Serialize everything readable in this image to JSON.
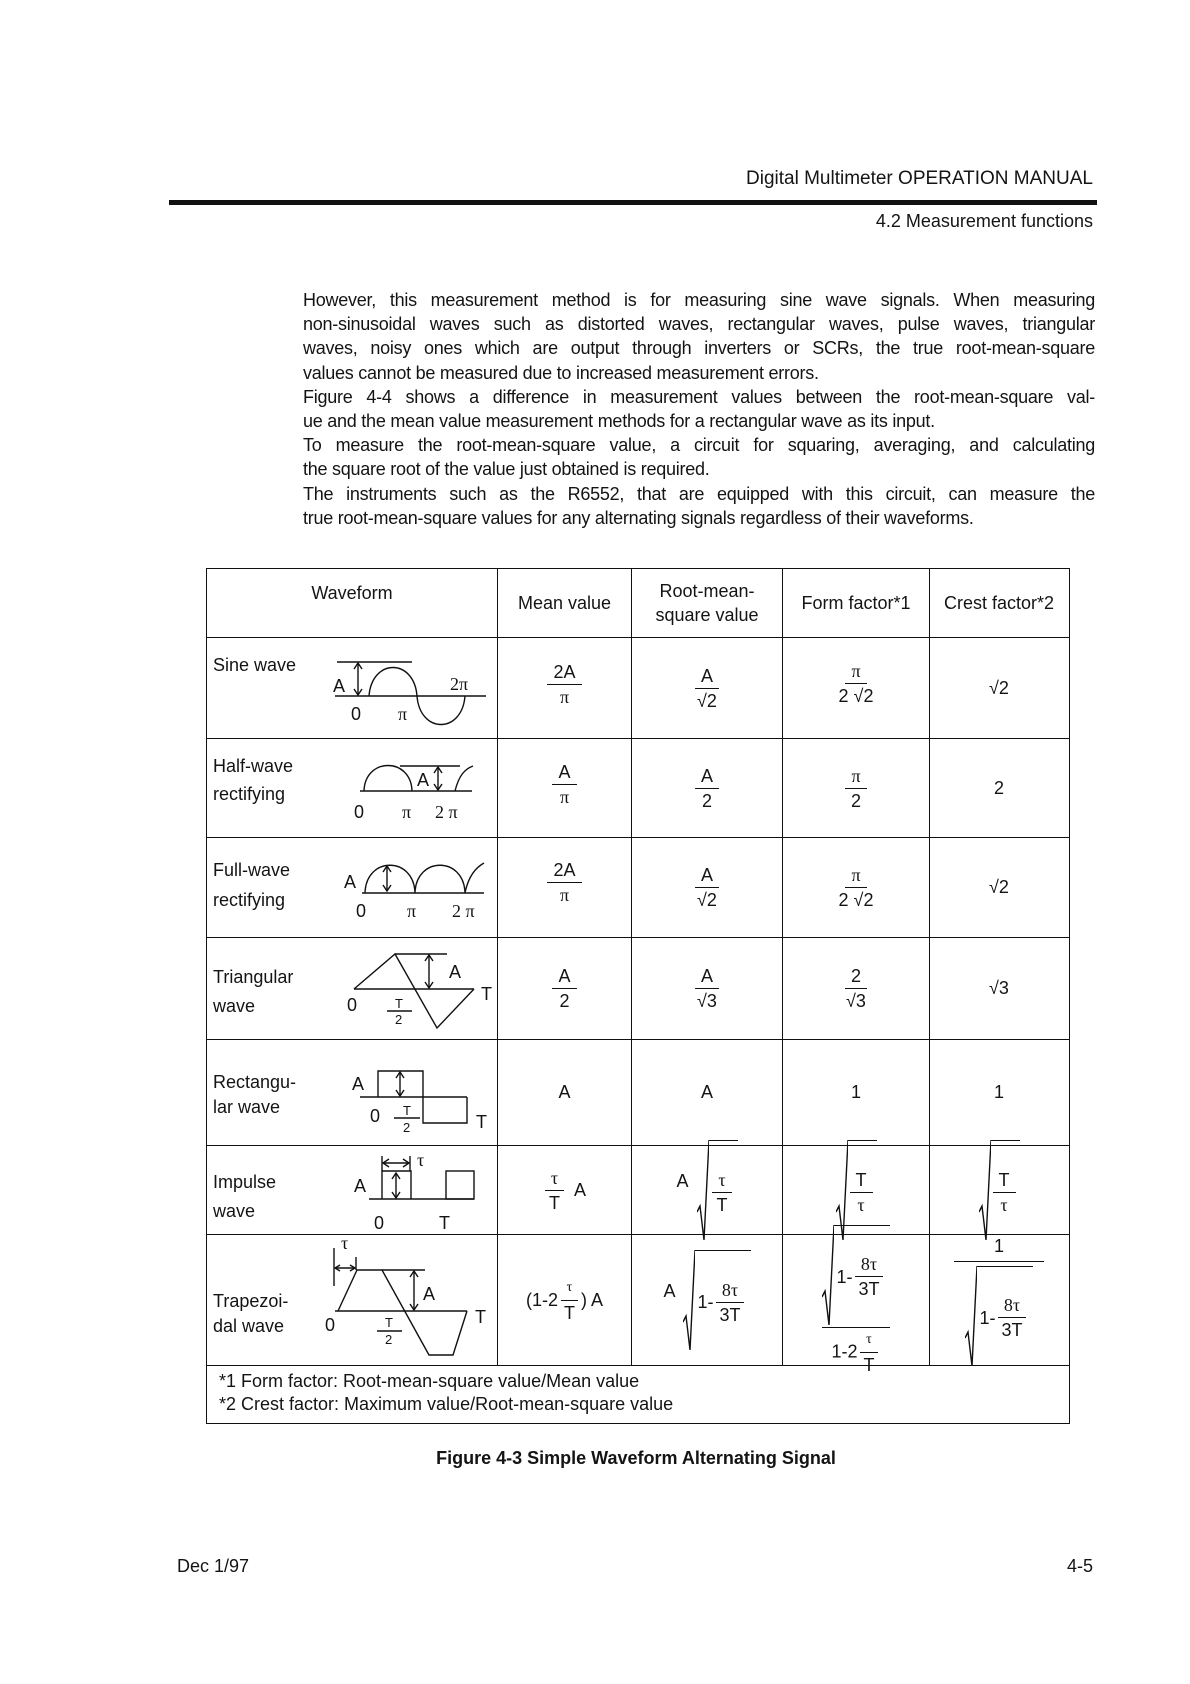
{
  "header": {
    "manual_title": "Digital Multimeter OPERATION MANUAL",
    "section": "4.2 Measurement functions"
  },
  "body": {
    "lines": [
      "However, this measurement method is for measuring sine wave signals. When measuring",
      "non-sinusoidal waves such as distorted waves, rectangular waves, pulse waves, triangular",
      "waves, noisy ones which are output through inverters or SCRs, the true root-mean-square",
      "values cannot be measured due to increased measurement errors.",
      "Figure 4-4 shows a difference in measurement values between the root-mean-square val-",
      "ue and the mean value measurement methods for a rectangular wave as its input.",
      "To measure the root-mean-square value, a circuit for squaring, averaging, and calculating",
      "the square root of the value just obtained is required.",
      "The instruments such as the R6552, that are equipped with this circuit, can measure the",
      "true root-mean-square values for any alternating signals regardless of their waveforms."
    ]
  },
  "table": {
    "headers": {
      "waveform": "Waveform",
      "mean": "Mean value",
      "rms_line1": "Root-mean-",
      "rms_line2": "square value",
      "form": "Form factor*1",
      "crest": "Crest factor*2"
    },
    "rows": [
      {
        "name": [
          "Sine wave"
        ],
        "wave_labels": {
          "a": "A",
          "two_pi": "2π",
          "zero": "0",
          "pi": "π"
        },
        "mean": {
          "num": "2A",
          "den": "π"
        },
        "rms": {
          "num": "A",
          "den": "√2"
        },
        "form": {
          "num": "π",
          "den": "2 √2"
        },
        "crest": "√2"
      },
      {
        "name": [
          "Half-wave",
          "rectifying"
        ],
        "wave_labels": {
          "a": "A",
          "zero": "0",
          "pi": "π",
          "two_pi": "2 π"
        },
        "mean": {
          "num": "A",
          "den": "π"
        },
        "rms": {
          "num": "A",
          "den": "2"
        },
        "form": {
          "num": "π",
          "den": "2"
        },
        "crest": "2"
      },
      {
        "name": [
          "Full-wave",
          "rectifying"
        ],
        "wave_labels": {
          "a": "A",
          "zero": "0",
          "pi": "π",
          "two_pi": "2 π"
        },
        "mean": {
          "num": "2A",
          "den": "π"
        },
        "rms": {
          "num": "A",
          "den": "√2"
        },
        "form": {
          "num": "π",
          "den": "2 √2"
        },
        "crest": "√2"
      },
      {
        "name": [
          "Triangular",
          "wave"
        ],
        "wave_labels": {
          "a": "A",
          "t": "T",
          "zero": "0",
          "half_num": "T",
          "half_den": "2"
        },
        "mean": {
          "num": "A",
          "den": "2"
        },
        "rms": {
          "num": "A",
          "den": "√3"
        },
        "form": {
          "num": "2",
          "den": "√3"
        },
        "crest": "√3"
      },
      {
        "name": [
          "Rectangu-",
          "lar wave"
        ],
        "wave_labels": {
          "a": "A",
          "zero": "0",
          "half_num": "T",
          "half_den": "2",
          "t": "T"
        },
        "mean": "A",
        "rms": "A",
        "form": "1",
        "crest": "1"
      },
      {
        "name": [
          "Impulse",
          "wave"
        ],
        "wave_labels": {
          "tau": "τ",
          "a": "A",
          "zero": "0",
          "t": "T"
        },
        "mean": {
          "num": "τ",
          "den": "T",
          "suffix": "A"
        },
        "rms": {
          "prefix": "A",
          "num": "τ",
          "den": "T"
        },
        "form": {
          "num": "T",
          "den": "τ"
        },
        "crest": {
          "num": "T",
          "den": "τ"
        }
      },
      {
        "name": [
          "Trapezoi-",
          "dal wave"
        ],
        "wave_labels": {
          "tau": "τ",
          "a": "A",
          "t": "T",
          "zero": "0",
          "half_num": "T",
          "half_den": "2"
        },
        "mean": {
          "open": "(1-2",
          "num": "τ",
          "den": "T",
          "close": ") A"
        },
        "rms": {
          "prefix": "A",
          "lead": "1-",
          "num": "8τ",
          "den": "3T"
        },
        "form": {
          "lead": "1-",
          "num": "8τ",
          "den": "3T",
          "lower_lead": "1-2",
          "lower_num": "τ",
          "lower_den": "T"
        },
        "crest": {
          "num": "1",
          "lead": "1-",
          "inner_num": "8τ",
          "inner_den": "3T"
        }
      }
    ],
    "notes": [
      "*1 Form factor: Root-mean-square value/Mean value",
      "*2 Crest factor: Maximum value/Root-mean-square value"
    ]
  },
  "caption": "Figure 4-3 Simple Waveform Alternating Signal",
  "footer": {
    "date": "Dec 1/97",
    "page": "4-5"
  }
}
